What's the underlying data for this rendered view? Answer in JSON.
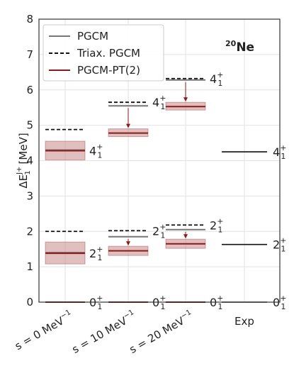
{
  "chart_data": {
    "type": "level-scheme",
    "nucleus": "20Ne",
    "ylabel": "ΔE^{J+}_{1} [MeV]",
    "ylim": [
      0,
      8
    ],
    "yticks": [
      0,
      1,
      2,
      3,
      4,
      5,
      6,
      7,
      8
    ],
    "grid": true,
    "legend_position": "top-left",
    "legend": [
      {
        "key": "pgcm",
        "label": "PGCM",
        "style": "solid",
        "color": "#777777"
      },
      {
        "key": "triax",
        "label": "Triax. PGCM",
        "style": "dashed",
        "color": "#111111"
      },
      {
        "key": "pt2",
        "label": "PGCM-PT(2)",
        "style": "solid",
        "color": "#8b1a1a"
      }
    ],
    "columns": [
      {
        "label": "s = 0 MeV",
        "unit_exp": "−1",
        "levels": [
          {
            "J": "0",
            "pgcm": 0.0,
            "triax": null,
            "pt2": 0.0,
            "band": null
          },
          {
            "J": "2",
            "pgcm": 1.4,
            "triax": 2.0,
            "pt2": 1.38,
            "band": [
              1.08,
              1.7
            ]
          },
          {
            "J": "4",
            "pgcm": 4.3,
            "triax": 4.88,
            "pt2": 4.28,
            "band": [
              4.02,
              4.55
            ]
          }
        ]
      },
      {
        "label": "s = 10 MeV",
        "unit_exp": "−1",
        "levels": [
          {
            "J": "0",
            "pgcm": 0.0,
            "triax": null,
            "pt2": 0.0,
            "band": null
          },
          {
            "J": "2",
            "pgcm": 1.85,
            "triax": 2.02,
            "pt2": 1.45,
            "band": [
              1.32,
              1.58
            ]
          },
          {
            "J": "4",
            "pgcm": 5.55,
            "triax": 5.65,
            "pt2": 4.78,
            "band": [
              4.68,
              4.9
            ]
          }
        ]
      },
      {
        "label": "s = 20 MeV",
        "unit_exp": "−1",
        "levels": [
          {
            "J": "0",
            "pgcm": 0.0,
            "triax": null,
            "pt2": 0.0,
            "band": null
          },
          {
            "J": "2",
            "pgcm": 2.05,
            "triax": 2.18,
            "pt2": 1.65,
            "band": [
              1.52,
              1.78
            ]
          },
          {
            "J": "4",
            "pgcm": 6.28,
            "triax": 6.32,
            "pt2": 5.53,
            "band": [
              5.43,
              5.65
            ]
          }
        ]
      },
      {
        "label": "Exp",
        "unit_exp": "",
        "levels": [
          {
            "J": "0",
            "exp": 0.0
          },
          {
            "J": "2",
            "exp": 1.63
          },
          {
            "J": "4",
            "exp": 4.25
          }
        ]
      }
    ],
    "colors": {
      "pgcm": "#777777",
      "triax": "#111111",
      "pt2": "#8b1a1a",
      "band": "#c98a8a",
      "exp": "#111111",
      "grid": "#e2e2e2",
      "frame": "#333333"
    }
  }
}
